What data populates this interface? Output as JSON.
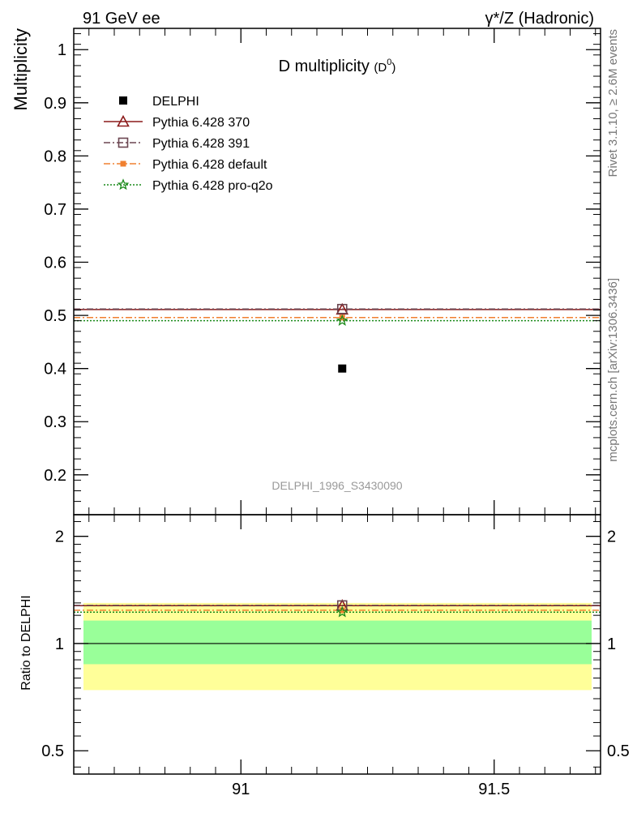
{
  "header": {
    "left": "91 GeV ee",
    "right": "γ*/Z (Hadronic)"
  },
  "side_labels": {
    "rivet": "Rivet 3.1.10, ≥ 2.6M events",
    "mcplots": "mcplots.cern.ch [arXiv:1306.3436]"
  },
  "chart_data": [
    {
      "type": "scatter",
      "title": "D multiplicity",
      "title_sub": "(D",
      "title_sup": "0",
      "title_close": ")",
      "ylabel": "Multiplicity",
      "analysis_label": "DELPHI_1996_S3430090",
      "xlim": [
        90.67,
        91.71
      ],
      "ylim": [
        0.125,
        1.04
      ],
      "yticks": [
        0.2,
        0.3,
        0.4,
        0.5,
        0.6,
        0.7,
        0.8,
        0.9,
        1
      ],
      "ytick_labels": [
        "0.2",
        "0.3",
        "0.4",
        "0.5",
        "0.6",
        "0.7",
        "0.8",
        "0.9",
        "1"
      ],
      "xticks": [
        91,
        91.5
      ],
      "legend_position": "top-left",
      "data": {
        "name": "DELPHI",
        "x": [
          91.2
        ],
        "y": [
          0.4
        ],
        "color": "#000000"
      },
      "series": [
        {
          "name": "Pythia 6.428 370",
          "x_range": [
            90.67,
            91.71
          ],
          "x": [
            91.2
          ],
          "y": [
            0.511
          ],
          "color": "#8b1a1a",
          "marker": "triangle",
          "dash": "solid"
        },
        {
          "name": "Pythia 6.428 391",
          "x_range": [
            90.67,
            91.71
          ],
          "x": [
            91.2
          ],
          "y": [
            0.512
          ],
          "color": "#6b4550",
          "marker": "square-open",
          "dash": "dashdot"
        },
        {
          "name": "Pythia 6.428 default",
          "x_range": [
            90.67,
            91.71
          ],
          "x": [
            91.2
          ],
          "y": [
            0.496
          ],
          "color": "#f08030",
          "marker": "square-filled",
          "dash": "dashdot"
        },
        {
          "name": "Pythia 6.428 pro-q2o",
          "x_range": [
            90.67,
            91.71
          ],
          "x": [
            91.2
          ],
          "y": [
            0.49
          ],
          "color": "#1a8a1a",
          "marker": "star",
          "dash": "dotted"
        }
      ]
    },
    {
      "type": "scatter",
      "ylabel": "Ratio to DELPHI",
      "yscale": "log",
      "xlim": [
        90.67,
        91.71
      ],
      "ylim": [
        0.43,
        2.3
      ],
      "yticks": [
        0.5,
        1,
        2
      ],
      "ytick_labels": [
        "0.5",
        "1",
        "2"
      ],
      "xticks": [
        91,
        91.5
      ],
      "xtick_labels": [
        "91",
        "91.5"
      ],
      "bands": [
        {
          "label": "outer",
          "range": [
            0.74,
            1.3
          ],
          "color": "#ffff99"
        },
        {
          "label": "inner",
          "range": [
            0.875,
            1.16
          ],
          "color": "#99ff99"
        }
      ],
      "reference": 1,
      "series": [
        {
          "name": "Pythia 6.428 370",
          "x": [
            91.2
          ],
          "y": [
            1.2775
          ],
          "color": "#8b1a1a",
          "marker": "triangle",
          "dash": "solid"
        },
        {
          "name": "Pythia 6.428 391",
          "x": [
            91.2
          ],
          "y": [
            1.28
          ],
          "color": "#6b4550",
          "marker": "square-open",
          "dash": "dashdot"
        },
        {
          "name": "Pythia 6.428 default",
          "x": [
            91.2
          ],
          "y": [
            1.24
          ],
          "color": "#f08030",
          "marker": "square-filled",
          "dash": "dashdot"
        },
        {
          "name": "Pythia 6.428 pro-q2o",
          "x": [
            91.2
          ],
          "y": [
            1.225
          ],
          "color": "#1a8a1a",
          "marker": "star",
          "dash": "dotted"
        }
      ]
    }
  ]
}
